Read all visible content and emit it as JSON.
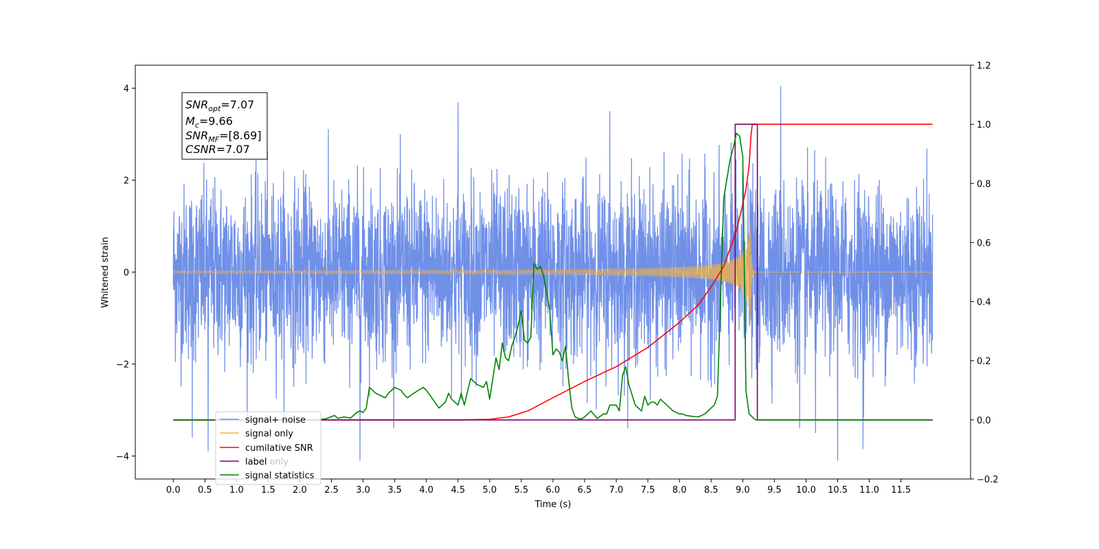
{
  "chart_data": {
    "type": "line",
    "xlabel": "Time (s)",
    "ylabel": "Whitened strain",
    "xlim": [
      -0.6,
      12.6
    ],
    "ylim": [
      -4.5,
      4.5
    ],
    "ylim_right": [
      -0.2,
      1.2
    ],
    "grid": false,
    "legend_position": "lower-left",
    "x_ticks": [
      "0.0",
      "0.5",
      "1.0",
      "1.5",
      "2.0",
      "2.5",
      "3.0",
      "3.5",
      "4.0",
      "4.5",
      "5.0",
      "5.5",
      "6.0",
      "6.5",
      "7.0",
      "7.5",
      "8.0",
      "8.5",
      "9.0",
      "9.5",
      "10.0",
      "10.5",
      "11.0",
      "11.5"
    ],
    "x_tick_values": [
      0,
      0.5,
      1,
      1.5,
      2,
      2.5,
      3,
      3.5,
      4,
      4.5,
      5,
      5.5,
      6,
      6.5,
      7,
      7.5,
      8,
      8.5,
      9,
      9.5,
      10,
      10.5,
      11,
      11.5
    ],
    "y_ticks_left": [
      "−4",
      "−2",
      "0",
      "2",
      "4"
    ],
    "y_tick_values_left": [
      -4,
      -2,
      0,
      2,
      4
    ],
    "y_ticks_right": [
      "−0.2",
      "0.0",
      "0.2",
      "0.4",
      "0.6",
      "0.8",
      "1.0",
      "1.2"
    ],
    "y_tick_values_right": [
      -0.2,
      0,
      0.2,
      0.4,
      0.6,
      0.8,
      1.0,
      1.2
    ],
    "annotation": [
      {
        "base": "SNR",
        "sub": "opt",
        "value": "=7.07"
      },
      {
        "base": "M",
        "sub": "c",
        "value": "=9.66"
      },
      {
        "base": "SNR",
        "sub": "MF",
        "value": "=[8.69]"
      },
      {
        "base": "CSNR",
        "sub": "",
        "value": "=7.07"
      }
    ],
    "series": [
      {
        "name": "signal+ noise",
        "axis": "left",
        "color": "#7090e8",
        "kind": "noise",
        "x_range": [
          0,
          12
        ],
        "std": 0.95,
        "notable_peaks": [
          [
            0.55,
            -3.9
          ],
          [
            0.3,
            -3.6
          ],
          [
            2.95,
            -4.1
          ],
          [
            4.5,
            3.7
          ],
          [
            9.6,
            4.05
          ],
          [
            10.5,
            -4.1
          ],
          [
            10.15,
            -3.5
          ],
          [
            9.9,
            -3.4
          ],
          [
            10.9,
            -3.85
          ],
          [
            6.9,
            3.5
          ]
        ]
      },
      {
        "name": "signal only",
        "axis": "left",
        "color": "#f5b342",
        "kind": "chirp",
        "x_range": [
          0,
          12
        ],
        "merger_time": 9.12,
        "peak_amplitude": 1.2
      },
      {
        "name": "cumilative SNR",
        "axis": "right",
        "color": "#ff0000",
        "x": [
          0,
          4.5,
          5.0,
          5.3,
          5.6,
          6.0,
          6.5,
          7.0,
          7.5,
          8.0,
          8.3,
          8.5,
          8.7,
          8.9,
          9.0,
          9.05,
          9.1,
          9.13,
          9.15,
          12.0
        ],
        "y": [
          0,
          0,
          0.002,
          0.01,
          0.03,
          0.075,
          0.13,
          0.18,
          0.245,
          0.33,
          0.39,
          0.45,
          0.52,
          0.64,
          0.73,
          0.78,
          0.86,
          0.96,
          1.0,
          1.0
        ]
      },
      {
        "name": "label",
        "axis": "right",
        "color": "#7b006f",
        "x": [
          0,
          8.88,
          8.88,
          9.23,
          9.23,
          12.0
        ],
        "y": [
          0,
          0,
          1,
          1,
          0,
          0
        ]
      },
      {
        "name": "signal statistics",
        "axis": "right",
        "color": "#008000",
        "x": [
          0,
          2.2,
          2.4,
          2.55,
          2.6,
          2.7,
          2.8,
          2.9,
          2.95,
          3.0,
          3.05,
          3.1,
          3.2,
          3.35,
          3.4,
          3.5,
          3.6,
          3.65,
          3.7,
          3.8,
          3.95,
          4.0,
          4.1,
          4.2,
          4.3,
          4.35,
          4.4,
          4.5,
          4.55,
          4.6,
          4.7,
          4.8,
          4.9,
          4.95,
          5.0,
          5.05,
          5.1,
          5.15,
          5.2,
          5.25,
          5.3,
          5.35,
          5.4,
          5.45,
          5.5,
          5.55,
          5.6,
          5.65,
          5.7,
          5.75,
          5.8,
          5.85,
          5.9,
          5.95,
          6.0,
          6.05,
          6.1,
          6.15,
          6.2,
          6.25,
          6.3,
          6.35,
          6.4,
          6.45,
          6.5,
          6.6,
          6.7,
          6.8,
          6.85,
          6.9,
          6.95,
          7.0,
          7.05,
          7.1,
          7.15,
          7.2,
          7.3,
          7.35,
          7.4,
          7.45,
          7.5,
          7.55,
          7.6,
          7.65,
          7.7,
          7.8,
          7.9,
          8.0,
          8.05,
          8.1,
          8.2,
          8.3,
          8.4,
          8.5,
          8.55,
          8.6,
          8.7,
          8.8,
          8.85,
          8.9,
          8.95,
          9.0,
          9.05,
          9.1,
          9.15,
          9.2,
          9.3,
          12.0
        ],
        "y": [
          0,
          0,
          0.003,
          0.015,
          0.005,
          0.01,
          0.006,
          0.025,
          0.03,
          0.025,
          0.04,
          0.11,
          0.09,
          0.075,
          0.09,
          0.11,
          0.1,
          0.085,
          0.075,
          0.09,
          0.11,
          0.1,
          0.07,
          0.04,
          0.06,
          0.09,
          0.07,
          0.05,
          0.09,
          0.05,
          0.14,
          0.12,
          0.11,
          0.13,
          0.07,
          0.14,
          0.21,
          0.17,
          0.26,
          0.21,
          0.2,
          0.25,
          0.28,
          0.32,
          0.37,
          0.27,
          0.26,
          0.28,
          0.53,
          0.51,
          0.52,
          0.49,
          0.43,
          0.37,
          0.22,
          0.24,
          0.23,
          0.2,
          0.25,
          0.13,
          0.04,
          0.01,
          0.005,
          0.003,
          0.01,
          0.03,
          0.005,
          0.02,
          0.02,
          0.05,
          0.05,
          0.05,
          0.03,
          0.15,
          0.18,
          0.12,
          0.05,
          0.04,
          0.03,
          0.08,
          0.05,
          0.06,
          0.06,
          0.05,
          0.07,
          0.05,
          0.03,
          0.02,
          0.02,
          0.015,
          0.012,
          0.01,
          0.02,
          0.04,
          0.05,
          0.08,
          0.75,
          0.88,
          0.92,
          0.97,
          0.96,
          0.89,
          0.1,
          0.02,
          0.01,
          0,
          0,
          0
        ]
      }
    ],
    "legend": [
      "signal+ noise",
      "signal only",
      "cumilative SNR",
      "label",
      "signal statistics"
    ],
    "legend_ghost_text": "label only"
  }
}
